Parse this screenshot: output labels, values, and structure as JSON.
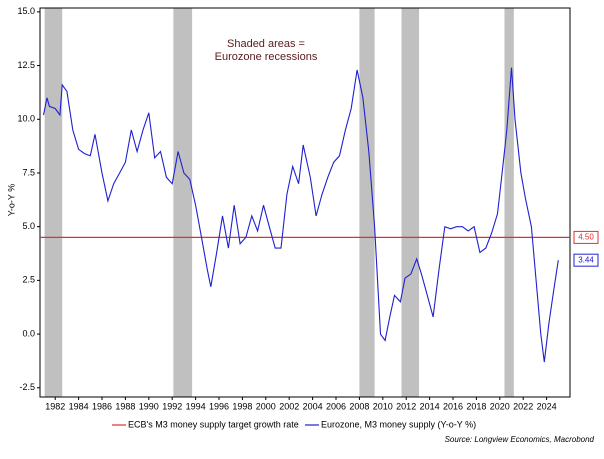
{
  "chart_data": {
    "type": "line",
    "annotation": [
      "Shaded areas =",
      "Eurozone recessions"
    ],
    "ylabel": "Y-o-Y %",
    "source": "Source: Longview Economics, Macrobond",
    "xlim": [
      1980.7,
      2026
    ],
    "xticks": [
      1982,
      1984,
      1986,
      1988,
      1990,
      1992,
      1994,
      1996,
      1998,
      2000,
      2002,
      2004,
      2006,
      2008,
      2010,
      2012,
      2014,
      2016,
      2018,
      2020,
      2022,
      2024
    ],
    "ylim": [
      -2.93,
      15.18
    ],
    "yticks": [
      {
        "value": 15,
        "label": "15.0"
      },
      12.5,
      {
        "value": 10,
        "label": "10.0"
      },
      7.5,
      {
        "value": 5,
        "label": "5.0"
      },
      2.5,
      {
        "value": 0,
        "label": "0.0"
      },
      -2.5
    ],
    "recessions": [
      [
        1981.1,
        1982.6
      ],
      [
        1992.1,
        1993.7
      ],
      [
        2008.0,
        2009.3
      ],
      [
        2011.6,
        2013.1
      ],
      [
        2020.4,
        2021.2
      ]
    ],
    "recession_color": "#c0c0c0",
    "series": [
      {
        "name": "ECB's M3 money supply target growth rate",
        "color": "#e03030",
        "kind": "hline",
        "values": [
          4.5
        ],
        "value_labels": [
          "4.50"
        ]
      },
      {
        "name": "Eurozone, M3 money supply (Y-o-Y %)",
        "color": "#2020d0",
        "x": [
          1981.0,
          1981.3,
          1981.5,
          1982.0,
          1982.4,
          1982.6,
          1983.0,
          1983.5,
          1984.0,
          1984.5,
          1985.0,
          1985.4,
          1986.0,
          1986.5,
          1987.0,
          1987.5,
          1988.0,
          1988.5,
          1989.0,
          1989.5,
          1990.0,
          1990.5,
          1991.0,
          1991.5,
          1992.0,
          1992.5,
          1993.0,
          1993.5,
          1994.0,
          1994.5,
          1995.0,
          1995.3,
          1995.8,
          1996.3,
          1996.8,
          1997.3,
          1997.8,
          1998.3,
          1998.8,
          1999.3,
          1999.8,
          2000.3,
          2000.8,
          2001.3,
          2001.8,
          2002.3,
          2002.8,
          2003.2,
          2003.8,
          2004.3,
          2004.8,
          2005.3,
          2005.8,
          2006.3,
          2006.8,
          2007.3,
          2007.8,
          2008.3,
          2008.8,
          2009.3,
          2009.8,
          2010.2,
          2010.6,
          2011.0,
          2011.5,
          2011.9,
          2012.4,
          2012.9,
          2013.3,
          2013.8,
          2014.3,
          2014.8,
          2015.3,
          2015.8,
          2016.3,
          2016.8,
          2017.3,
          2017.8,
          2018.3,
          2018.8,
          2019.3,
          2019.8,
          2020.2,
          2020.6,
          2021.0,
          2021.3,
          2021.8,
          2022.2,
          2022.7,
          2023.1,
          2023.5,
          2023.8,
          2024.2,
          2024.6,
          2025.0
        ],
        "values": [
          10.2,
          11.0,
          10.6,
          10.5,
          10.2,
          11.6,
          11.3,
          9.5,
          8.6,
          8.4,
          8.3,
          9.3,
          7.5,
          6.2,
          7.0,
          7.5,
          8.0,
          9.5,
          8.5,
          9.5,
          10.3,
          8.2,
          8.5,
          7.3,
          7.0,
          8.5,
          7.5,
          7.2,
          6.0,
          4.5,
          3.0,
          2.2,
          3.8,
          5.5,
          4.0,
          6.0,
          4.2,
          4.5,
          5.5,
          4.8,
          6.0,
          5.0,
          4.0,
          4.0,
          6.5,
          7.8,
          7.0,
          8.8,
          7.3,
          5.5,
          6.5,
          7.3,
          8.0,
          8.3,
          9.5,
          10.5,
          12.3,
          11.0,
          8.5,
          5.0,
          0.0,
          -0.3,
          0.8,
          1.8,
          1.5,
          2.6,
          2.8,
          3.5,
          2.8,
          1.8,
          0.8,
          3.0,
          5.0,
          4.9,
          5.0,
          5.0,
          4.8,
          5.0,
          3.8,
          4.0,
          4.7,
          5.6,
          7.5,
          9.5,
          12.4,
          10.0,
          7.5,
          6.3,
          5.0,
          2.5,
          0.0,
          -1.3,
          0.5,
          2.0,
          3.44
        ]
      }
    ]
  }
}
